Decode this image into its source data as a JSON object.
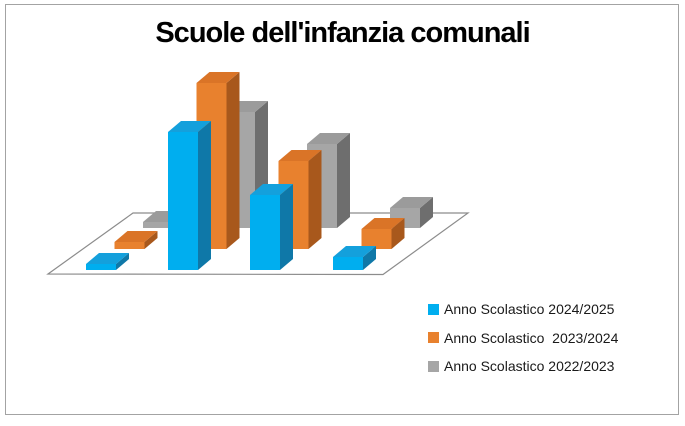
{
  "window": {
    "background": "#ffffff",
    "frame_border_color": "#a3a3a3"
  },
  "chart_data": {
    "type": "bar",
    "variant": "3d-column",
    "title": "Scuole dell'infanzia comunali",
    "title_color": "#000000",
    "categories": [
      "",
      "",
      "",
      ""
    ],
    "series": [
      {
        "name": "Anno Scolastico 2024/2025",
        "color": "#00AEEF",
        "color_top": "#14A0DC",
        "color_side": "#0F78A8",
        "values": [
          6,
          138,
          75,
          13
        ]
      },
      {
        "name": "Anno Scolastico  2023/2024",
        "color": "#E8812E",
        "color_top": "#DA7427",
        "color_side": "#A8581C",
        "values": [
          7,
          166,
          88,
          20
        ]
      },
      {
        "name": "Anno Scolastico 2022/2023",
        "color": "#A6A6A6",
        "color_top": "#9B9B9B",
        "color_side": "#6E6E6E",
        "values": [
          6,
          116,
          84,
          20
        ]
      }
    ],
    "values_note": "estimated relative heights; chart shows no value axis",
    "value_axis": "hidden",
    "category_axis": "hidden",
    "gridlines": false,
    "walls": false,
    "floor_outline_color": "#8C8C8C",
    "legend_position": "bottom-right"
  }
}
